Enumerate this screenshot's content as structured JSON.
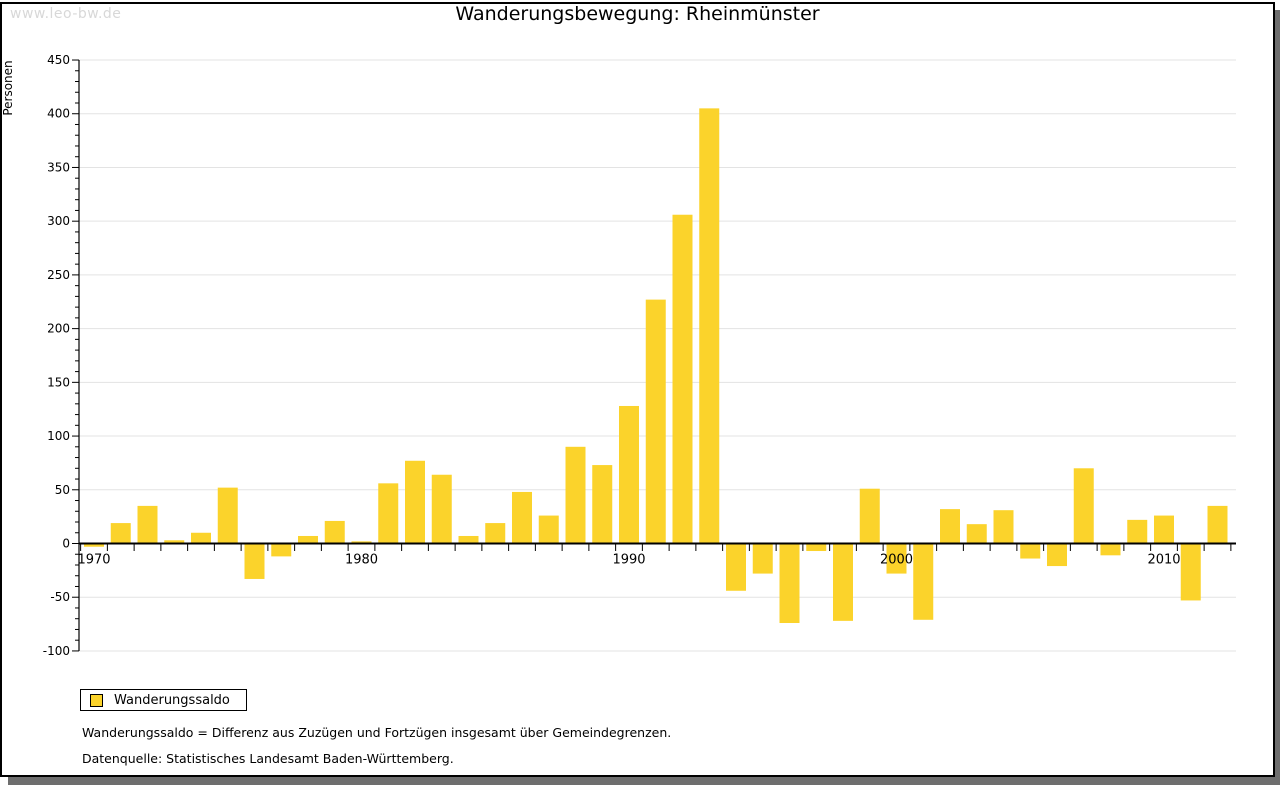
{
  "watermark": "www.leo-bw.de",
  "title": "Wanderungsbewegung: Rheinmünster",
  "legend": {
    "label": "Wanderungssaldo"
  },
  "footnotes": [
    "Wanderungssaldo = Differenz aus Zuzügen und Fortzügen insgesamt über Gemeindegrenzen.",
    "Datenquelle: Statistisches Landesamt Baden-Württemberg."
  ],
  "colors": {
    "bar": "#fbd32b",
    "grid": "#e3e3e3",
    "axis": "#000000",
    "watermark": "#d8d8d8",
    "shadow": "#6e6e6e"
  },
  "chart_data": {
    "type": "bar",
    "title": "Wanderungsbewegung: Rheinmünster",
    "xlabel": "",
    "ylabel": "Personen",
    "series_name": "Wanderungssaldo",
    "ylim": [
      -100,
      450
    ],
    "ytick_step": 50,
    "yticks": [
      -100,
      -50,
      0,
      50,
      100,
      150,
      200,
      250,
      300,
      350,
      400,
      450
    ],
    "minor_ytick_step": 10,
    "labeled_years": [
      1970,
      1980,
      1990,
      2000,
      2010
    ],
    "grid": true,
    "legend_position": "bottom-left",
    "categories": [
      1970,
      1971,
      1972,
      1973,
      1974,
      1975,
      1976,
      1977,
      1978,
      1979,
      1980,
      1981,
      1982,
      1983,
      1984,
      1985,
      1986,
      1987,
      1988,
      1989,
      1990,
      1991,
      1992,
      1993,
      1994,
      1995,
      1996,
      1997,
      1998,
      1999,
      2000,
      2001,
      2002,
      2003,
      2004,
      2005,
      2006,
      2007,
      2008,
      2009,
      2010,
      2011,
      2012
    ],
    "values": [
      -3,
      19,
      35,
      3,
      10,
      52,
      -33,
      -12,
      7,
      21,
      2,
      56,
      77,
      64,
      7,
      19,
      48,
      26,
      90,
      73,
      128,
      227,
      306,
      405,
      -44,
      -28,
      -74,
      -7,
      -72,
      51,
      -28,
      -71,
      32,
      18,
      31,
      -14,
      -21,
      70,
      -11,
      22,
      26,
      -53,
      35
    ]
  }
}
